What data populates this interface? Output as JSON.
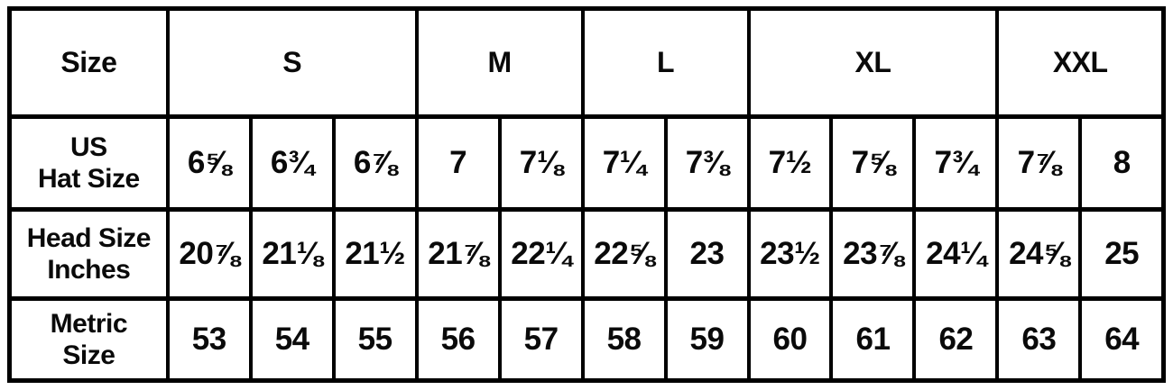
{
  "chart_data": {
    "type": "table",
    "description": "Hat size conversion chart",
    "corner_label": "Size",
    "size_groups": [
      {
        "label": "S",
        "colspan": 3
      },
      {
        "label": "M",
        "colspan": 2
      },
      {
        "label": "L",
        "colspan": 2
      },
      {
        "label": "XL",
        "colspan": 3
      },
      {
        "label": "XXL",
        "colspan": 2
      }
    ],
    "rows": [
      {
        "label": "US\nHat Size",
        "values": [
          "6⅝",
          "6¾",
          "6⅞",
          "7",
          "7⅛",
          "7¼",
          "7⅜",
          "7½",
          "7⅝",
          "7¾",
          "7⅞",
          "8"
        ]
      },
      {
        "label": "Head Size\nInches",
        "values": [
          "20⅞",
          "21⅛",
          "21½",
          "21⅞",
          "22¼",
          "22⅝",
          "23",
          "23½",
          "23⅞",
          "24¼",
          "24⅝",
          "25"
        ]
      },
      {
        "label": "Metric\nSize",
        "values": [
          "53",
          "54",
          "55",
          "56",
          "57",
          "58",
          "59",
          "60",
          "61",
          "62",
          "63",
          "64"
        ]
      }
    ],
    "colors": {
      "border": "#000000",
      "background": "#ffffff",
      "text": "#0a0a0a"
    },
    "layout": {
      "grid": "on",
      "label_column_width_pct": 13.7,
      "value_columns": 12
    }
  }
}
